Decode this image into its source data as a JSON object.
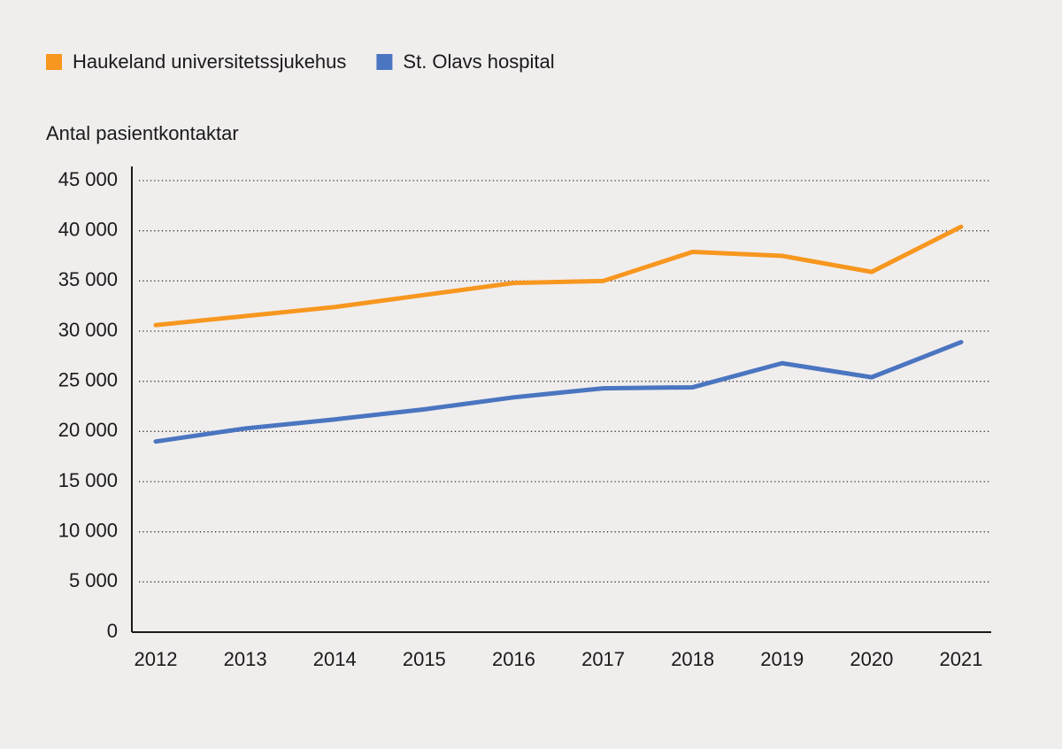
{
  "chart_data": {
    "type": "line",
    "y_axis_label": "Antal pasientkontaktar",
    "categories": [
      "2012",
      "2013",
      "2014",
      "2015",
      "2016",
      "2017",
      "2018",
      "2019",
      "2020",
      "2021"
    ],
    "series": [
      {
        "name": "Haukeland universitetssjukehus",
        "color": "#f7971f",
        "values": [
          30600,
          31500,
          32400,
          33600,
          34800,
          35000,
          37900,
          37500,
          35900,
          40400
        ]
      },
      {
        "name": "St. Olavs hospital",
        "color": "#4a75c0",
        "values": [
          19000,
          20300,
          21200,
          22200,
          23400,
          24300,
          24400,
          26800,
          25400,
          28900
        ]
      }
    ],
    "ylim": [
      0,
      45000
    ],
    "yticks": [
      0,
      {
        "value": 5000,
        "label": "5 000"
      },
      {
        "value": 10000,
        "label": "10 000"
      },
      {
        "value": 15000,
        "label": "15 000"
      },
      {
        "value": 20000,
        "label": "20 000"
      },
      {
        "value": 25000,
        "label": "25 000"
      },
      {
        "value": 30000,
        "label": "30 000"
      },
      {
        "value": 35000,
        "label": "35 000"
      },
      {
        "value": 40000,
        "label": "40 000"
      },
      {
        "value": 45000,
        "label": "45 000"
      }
    ],
    "grid": true,
    "legend": "top-left"
  }
}
